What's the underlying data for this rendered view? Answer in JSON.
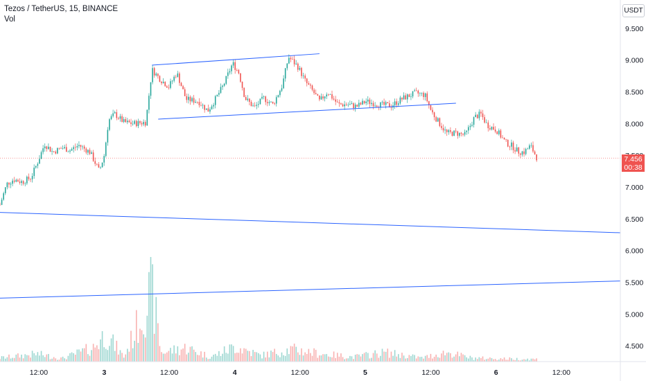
{
  "header": {
    "title": "Tezos / TetherUS, 15, BINANCE",
    "volume_label": "Vol"
  },
  "price_axis": {
    "currency": "USDT",
    "last_price": "7.456",
    "countdown": "00:38"
  },
  "colors": {
    "up": "#26a69a",
    "down": "#ef5350",
    "trendline": "#2962ff",
    "axis_text": "#131722"
  },
  "chart_data": {
    "type": "candlestick",
    "y_ticks": [
      "9.500",
      "9.000",
      "8.500",
      "8.000",
      "7.500",
      "7.000",
      "6.500",
      "6.000",
      "5.500",
      "5.000",
      "4.500"
    ],
    "ylim": [
      4.25,
      9.75
    ],
    "x_ticks": [
      {
        "label": "12:00",
        "pos": 0.0625
      },
      {
        "label": "3",
        "pos": 0.168
      },
      {
        "label": "12:00",
        "pos": 0.2727
      },
      {
        "label": "4",
        "pos": 0.3784
      },
      {
        "label": "12:00",
        "pos": 0.4836
      },
      {
        "label": "5",
        "pos": 0.5888
      },
      {
        "label": "12:00",
        "pos": 0.6944
      },
      {
        "label": "6",
        "pos": 0.7997
      },
      {
        "label": "12:00",
        "pos": 0.9049
      }
    ],
    "last_price": 7.456,
    "price_path": [
      [
        0.0,
        6.72
      ],
      [
        0.011,
        7.05
      ],
      [
        0.022,
        7.12
      ],
      [
        0.036,
        7.08
      ],
      [
        0.05,
        7.15
      ],
      [
        0.061,
        7.4
      ],
      [
        0.072,
        7.68
      ],
      [
        0.085,
        7.55
      ],
      [
        0.1,
        7.62
      ],
      [
        0.113,
        7.58
      ],
      [
        0.127,
        7.66
      ],
      [
        0.145,
        7.55
      ],
      [
        0.16,
        7.25
      ],
      [
        0.168,
        7.5
      ],
      [
        0.175,
        8.05
      ],
      [
        0.185,
        8.15
      ],
      [
        0.2,
        8.02
      ],
      [
        0.215,
        8.0
      ],
      [
        0.235,
        8.02
      ],
      [
        0.245,
        8.85
      ],
      [
        0.258,
        8.7
      ],
      [
        0.272,
        8.58
      ],
      [
        0.285,
        8.8
      ],
      [
        0.3,
        8.38
      ],
      [
        0.32,
        8.35
      ],
      [
        0.335,
        8.2
      ],
      [
        0.345,
        8.35
      ],
      [
        0.36,
        8.6
      ],
      [
        0.375,
        8.95
      ],
      [
        0.385,
        8.8
      ],
      [
        0.395,
        8.4
      ],
      [
        0.41,
        8.25
      ],
      [
        0.425,
        8.4
      ],
      [
        0.44,
        8.3
      ],
      [
        0.455,
        8.6
      ],
      [
        0.465,
        9.05
      ],
      [
        0.48,
        8.9
      ],
      [
        0.493,
        8.65
      ],
      [
        0.505,
        8.5
      ],
      [
        0.515,
        8.35
      ],
      [
        0.528,
        8.5
      ],
      [
        0.545,
        8.3
      ],
      [
        0.56,
        8.3
      ],
      [
        0.575,
        8.27
      ],
      [
        0.59,
        8.35
      ],
      [
        0.61,
        8.3
      ],
      [
        0.63,
        8.28
      ],
      [
        0.65,
        8.4
      ],
      [
        0.67,
        8.48
      ],
      [
        0.685,
        8.45
      ],
      [
        0.695,
        8.2
      ],
      [
        0.705,
        8.05
      ],
      [
        0.72,
        7.85
      ],
      [
        0.735,
        7.85
      ],
      [
        0.75,
        7.82
      ],
      [
        0.765,
        8.1
      ],
      [
        0.775,
        8.15
      ],
      [
        0.785,
        7.98
      ],
      [
        0.8,
        7.9
      ],
      [
        0.815,
        7.7
      ],
      [
        0.825,
        7.65
      ],
      [
        0.835,
        7.56
      ],
      [
        0.845,
        7.55
      ],
      [
        0.855,
        7.65
      ],
      [
        0.865,
        7.47
      ]
    ],
    "volume_path": [
      [
        0.0,
        0.12
      ],
      [
        0.06,
        0.25
      ],
      [
        0.1,
        0.1
      ],
      [
        0.15,
        0.45
      ],
      [
        0.17,
        0.9
      ],
      [
        0.2,
        0.15
      ],
      [
        0.245,
        2.3
      ],
      [
        0.26,
        0.3
      ],
      [
        0.3,
        0.45
      ],
      [
        0.34,
        0.15
      ],
      [
        0.38,
        0.5
      ],
      [
        0.42,
        0.2
      ],
      [
        0.47,
        0.4
      ],
      [
        0.52,
        0.25
      ],
      [
        0.57,
        0.15
      ],
      [
        0.62,
        0.3
      ],
      [
        0.68,
        0.12
      ],
      [
        0.72,
        0.3
      ],
      [
        0.76,
        0.12
      ],
      [
        0.8,
        0.1
      ],
      [
        0.86,
        0.08
      ]
    ],
    "trendlines": [
      {
        "start": [
          0.245,
          8.92
        ],
        "end": [
          0.515,
          9.1
        ]
      },
      {
        "start": [
          0.255,
          8.07
        ],
        "end": [
          0.735,
          8.32
        ]
      },
      {
        "start": [
          0.0,
          6.6
        ],
        "end": [
          1.0,
          6.28
        ]
      },
      {
        "start": [
          0.0,
          5.25
        ],
        "end": [
          1.0,
          5.52
        ]
      }
    ]
  }
}
